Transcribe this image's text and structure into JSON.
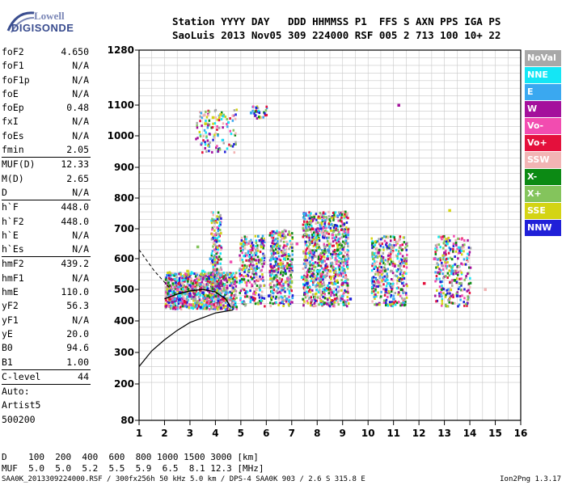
{
  "logo": {
    "line1": "Lowell",
    "line2": "DIGISONDE"
  },
  "header": {
    "row1": "Station YYYY DAY   DDD HHMMSS P1  FFS S AXN PPS IGA PS",
    "row2": "SaoLuis 2013 Nov05 309 224000 RSF 005 2 713 100 10+ 22"
  },
  "params": [
    {
      "name": "foF2",
      "value": "4.650"
    },
    {
      "name": "foF1",
      "value": "N/A"
    },
    {
      "name": "foF1p",
      "value": "N/A"
    },
    {
      "name": "foE",
      "value": "N/A"
    },
    {
      "name": "foEp",
      "value": "0.48"
    },
    {
      "name": "fxI",
      "value": "N/A"
    },
    {
      "name": "foEs",
      "value": "N/A"
    },
    {
      "name": "fmin",
      "value": "2.05",
      "sep": true
    },
    {
      "name": "MUF(D)",
      "value": "12.33"
    },
    {
      "name": "M(D)",
      "value": "2.65"
    },
    {
      "name": "D",
      "value": "N/A",
      "sep": true
    },
    {
      "name": "h`F",
      "value": "448.0"
    },
    {
      "name": "h`F2",
      "value": "448.0"
    },
    {
      "name": "h`E",
      "value": "N/A"
    },
    {
      "name": "h`Es",
      "value": "N/A",
      "sep": true
    },
    {
      "name": "hmF2",
      "value": "439.2"
    },
    {
      "name": "hmF1",
      "value": "N/A"
    },
    {
      "name": "hmE",
      "value": "110.0"
    },
    {
      "name": "yF2",
      "value": "56.3"
    },
    {
      "name": "yF1",
      "value": "N/A"
    },
    {
      "name": "yE",
      "value": "20.0"
    },
    {
      "name": "B0",
      "value": "94.6"
    },
    {
      "name": "B1",
      "value": "1.00",
      "sep": true
    },
    {
      "name": "C-level",
      "value": "44",
      "sep": true
    },
    {
      "name": "Auto:",
      "value": ""
    },
    {
      "name": "Artist5",
      "value": ""
    },
    {
      "name": "500200",
      "value": ""
    }
  ],
  "legend": [
    {
      "label": "NoVal",
      "color": "#a8a8a8"
    },
    {
      "label": "NNE",
      "color": "#14e6f5"
    },
    {
      "label": "E",
      "color": "#3aa8f0"
    },
    {
      "label": "W",
      "color": "#a4109c"
    },
    {
      "label": "Vo-",
      "color": "#f24cb0"
    },
    {
      "label": "Vo+",
      "color": "#e4103c"
    },
    {
      "label": "SSW",
      "color": "#f2b4b4"
    },
    {
      "label": "X-",
      "color": "#0c8a14"
    },
    {
      "label": "X+",
      "color": "#84c45c"
    },
    {
      "label": "SSE",
      "color": "#d4d414"
    },
    {
      "label": "NNW",
      "color": "#2020d8"
    }
  ],
  "bottom": {
    "row1": "D    100  200  400  600  800 1000 1500 3000 [km]",
    "row2": "MUF  5.0  5.0  5.2  5.5  5.9  6.5  8.1 12.3 [MHz]"
  },
  "footer": {
    "left": "SAA0K_2013309224000.RSF / 300fx256h 50 kHz 5.0 km / DPS-4 SAA0K 903 / 2.6 S 315.8 E",
    "right": "Ion2Png 1.3.17"
  },
  "chart_data": {
    "type": "scatter",
    "xlim": [
      1,
      16
    ],
    "ylim": [
      80,
      1280
    ],
    "x_ticks": [
      1,
      2,
      3,
      4,
      5,
      6,
      7,
      8,
      9,
      10,
      11,
      12,
      13,
      14,
      15,
      16
    ],
    "y_ticks": [
      80,
      200,
      300,
      400,
      500,
      600,
      700,
      800,
      900,
      1000,
      1100,
      1280
    ],
    "grid": true,
    "series": [
      {
        "name": "NoVal",
        "color": "#a8a8a8",
        "points": [
          [
            3.2,
            470
          ],
          [
            4.0,
            520
          ],
          [
            5.9,
            610
          ],
          [
            8.3,
            640
          ],
          [
            10.9,
            560
          ]
        ]
      },
      {
        "name": "NNE",
        "color": "#14e6f5",
        "points": [
          [
            2.6,
            480
          ],
          [
            3.5,
            560
          ],
          [
            6.7,
            600
          ],
          [
            8.0,
            560
          ],
          [
            8.9,
            620
          ],
          [
            13.1,
            650
          ],
          [
            10.8,
            520
          ],
          [
            7.4,
            540
          ]
        ]
      },
      {
        "name": "E",
        "color": "#3aa8f0",
        "points": [
          [
            2.4,
            470
          ],
          [
            3.8,
            600
          ],
          [
            4.4,
            490
          ],
          [
            6.8,
            470
          ],
          [
            8.2,
            590
          ],
          [
            9.2,
            680
          ],
          [
            11.0,
            470
          ],
          [
            13.3,
            560
          ],
          [
            5.4,
            1075
          ]
        ]
      },
      {
        "name": "W",
        "color": "#a4109c",
        "points": [
          [
            2.3,
            460
          ],
          [
            3.0,
            480
          ],
          [
            4.2,
            520
          ],
          [
            6.3,
            560
          ],
          [
            8.4,
            600
          ],
          [
            9.0,
            520
          ],
          [
            10.4,
            620
          ],
          [
            13.0,
            620
          ],
          [
            11.2,
            1100
          ]
        ]
      },
      {
        "name": "Vo-",
        "color": "#f24cb0",
        "points": [
          [
            2.5,
            500
          ],
          [
            3.1,
            510
          ],
          [
            3.9,
            550
          ],
          [
            4.6,
            590
          ],
          [
            7.2,
            650
          ],
          [
            8.6,
            680
          ],
          [
            10.5,
            560
          ],
          [
            12.6,
            600
          ]
        ]
      },
      {
        "name": "Vo+",
        "color": "#e4103c",
        "points": [
          [
            2.2,
            470
          ],
          [
            2.8,
            460
          ],
          [
            3.4,
            500
          ],
          [
            4.3,
            470
          ],
          [
            6.5,
            520
          ],
          [
            7.8,
            700
          ],
          [
            8.7,
            470
          ],
          [
            12.2,
            520
          ]
        ]
      },
      {
        "name": "SSW",
        "color": "#f2b4b4",
        "points": [
          [
            2.7,
            520
          ],
          [
            4.0,
            470
          ],
          [
            5.6,
            500
          ],
          [
            9.1,
            540
          ],
          [
            14.6,
            500
          ]
        ]
      },
      {
        "name": "X-",
        "color": "#0c8a14",
        "points": [
          [
            3.7,
            480
          ],
          [
            6.9,
            580
          ],
          [
            8.8,
            630
          ],
          [
            13.4,
            530
          ],
          [
            11.3,
            500
          ]
        ]
      },
      {
        "name": "X+",
        "color": "#84c45c",
        "points": [
          [
            3.3,
            640
          ],
          [
            5.3,
            560
          ],
          [
            8.1,
            510
          ],
          [
            10.2,
            600
          ],
          [
            13.6,
            520
          ]
        ]
      },
      {
        "name": "SSE",
        "color": "#d4d414",
        "points": [
          [
            2.9,
            560
          ],
          [
            3.6,
            1040
          ],
          [
            3.9,
            1060
          ],
          [
            4.2,
            1070
          ],
          [
            5.0,
            650
          ],
          [
            5.8,
            640
          ],
          [
            8.5,
            560
          ],
          [
            13.2,
            760
          ]
        ]
      },
      {
        "name": "NNW",
        "color": "#2020d8",
        "points": [
          [
            2.6,
            490
          ],
          [
            3.5,
            490
          ],
          [
            4.5,
            450
          ],
          [
            6.1,
            480
          ],
          [
            7.6,
            520
          ],
          [
            9.3,
            470
          ],
          [
            10.7,
            500
          ],
          [
            13.5,
            480
          ]
        ]
      }
    ]
  }
}
